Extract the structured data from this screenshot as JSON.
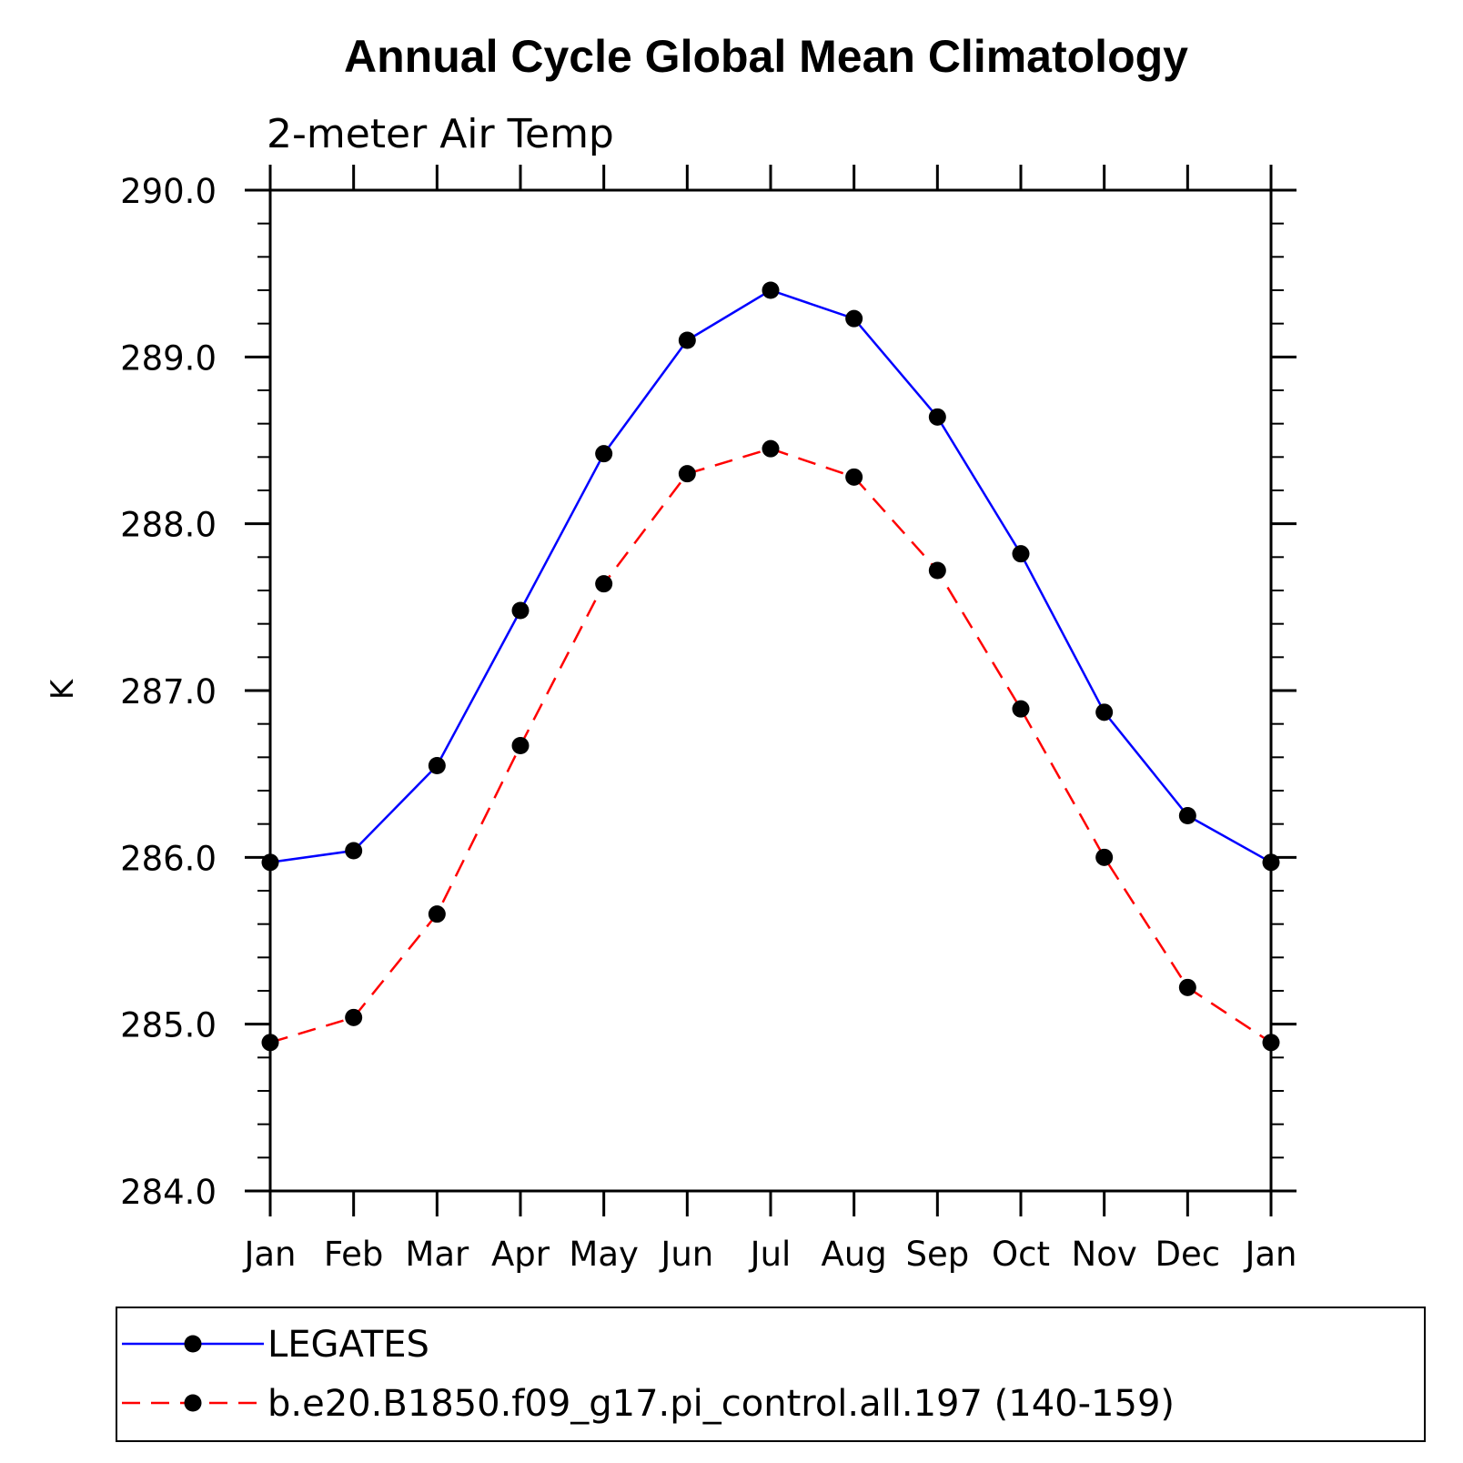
{
  "chart_data": {
    "type": "line",
    "title": "Annual Cycle Global Mean Climatology",
    "subtitle": "2-meter Air Temp",
    "xlabel": "",
    "ylabel": "K",
    "categories": [
      "Jan",
      "Feb",
      "Mar",
      "Apr",
      "May",
      "Jun",
      "Jul",
      "Aug",
      "Sep",
      "Oct",
      "Nov",
      "Dec",
      "Jan"
    ],
    "ylim": [
      284.0,
      290.0
    ],
    "yticks": [
      "284.0",
      "285.0",
      "286.0",
      "287.0",
      "288.0",
      "289.0",
      "290.0"
    ],
    "grid": false,
    "legend_position": "bottom",
    "series": [
      {
        "name": "LEGATES",
        "color": "#0000ff",
        "line_style": "solid",
        "marker": "filled-circle",
        "values": [
          285.97,
          286.04,
          286.55,
          287.48,
          288.42,
          289.1,
          289.4,
          289.23,
          288.64,
          287.82,
          286.87,
          286.25,
          285.97
        ]
      },
      {
        "name": "b.e20.B1850.f09_g17.pi_control.all.197 (140-159)",
        "color": "#ff0000",
        "line_style": "dashed",
        "marker": "filled-circle",
        "values": [
          284.89,
          285.04,
          285.66,
          286.67,
          287.64,
          288.3,
          288.45,
          288.28,
          287.72,
          286.89,
          286.0,
          285.22,
          284.89
        ]
      }
    ]
  }
}
